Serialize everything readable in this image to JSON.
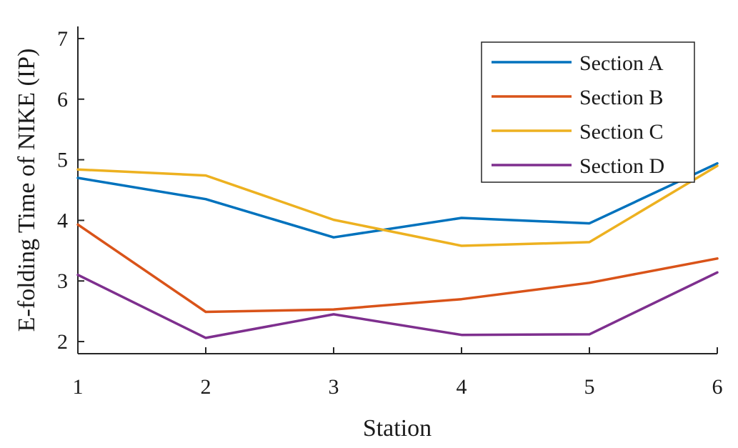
{
  "chart_data": {
    "type": "line",
    "xlabel": "Station",
    "ylabel": "E-folding Time of NIKE (IP)",
    "x": [
      1,
      2,
      3,
      4,
      5,
      6
    ],
    "xlim": [
      1,
      6
    ],
    "ylim": [
      1.8,
      7.2
    ],
    "xticks": [
      "1",
      "2",
      "3",
      "4",
      "5",
      "6"
    ],
    "yticks": [
      "2",
      "3",
      "4",
      "5",
      "6",
      "7"
    ],
    "grid": false,
    "legend_position": "top-right",
    "series": [
      {
        "name": "Section A",
        "color": "#0072BD",
        "values": [
          4.7,
          4.35,
          3.72,
          4.04,
          3.95,
          4.94
        ]
      },
      {
        "name": "Section B",
        "color": "#D95319",
        "values": [
          3.93,
          2.49,
          2.53,
          2.7,
          2.97,
          3.37
        ]
      },
      {
        "name": "Section C",
        "color": "#EDB120",
        "values": [
          4.84,
          4.74,
          4.01,
          3.58,
          3.64,
          4.9
        ]
      },
      {
        "name": "Section D",
        "color": "#7E2F8E",
        "values": [
          3.1,
          2.06,
          2.45,
          2.11,
          2.12,
          3.14
        ]
      }
    ]
  }
}
